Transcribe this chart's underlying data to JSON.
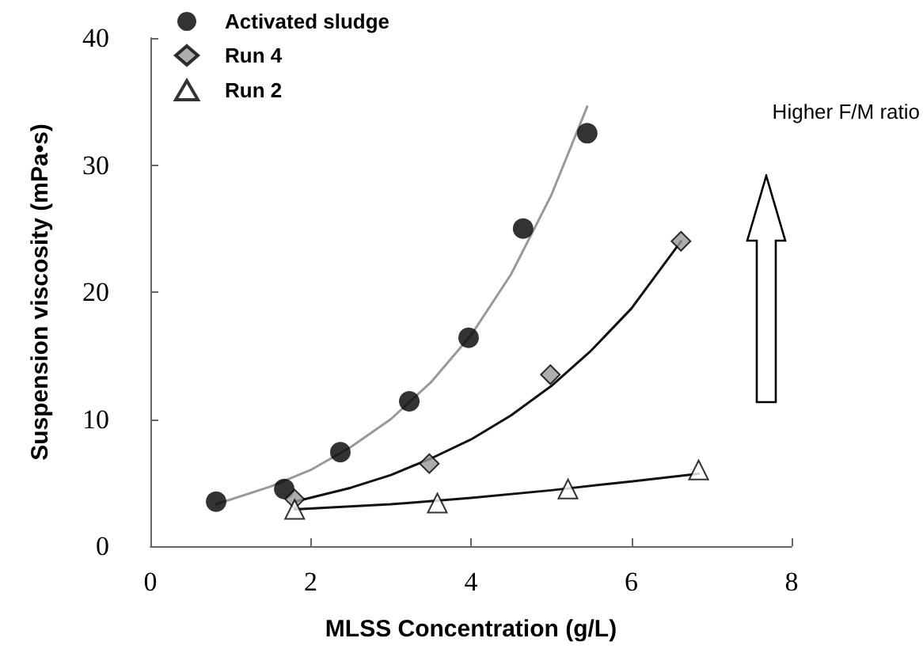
{
  "chart_data": {
    "type": "scatter",
    "xlabel": "MLSS Concentration (g/L)",
    "ylabel": "Suspension viscosity (mPa•s)",
    "xlim": [
      0,
      8
    ],
    "xticks": [
      0,
      2,
      4,
      6,
      8
    ],
    "ylim": [
      0,
      40
    ],
    "yticks": [
      0,
      10,
      20,
      30,
      40
    ],
    "grid": false,
    "legend": "top left",
    "annotations": [
      "Higher F/M ratio"
    ],
    "series": [
      {
        "type": "line",
        "color": "#999999",
        "marker": "none",
        "x": [
          0.82,
          1.5,
          2,
          2.5,
          3,
          3.5,
          4,
          4.5,
          5,
          5.45
        ],
        "values": [
          3.3,
          4.7,
          6.0,
          7.8,
          10.0,
          12.9,
          16.6,
          21.4,
          27.6,
          34.6
        ]
      },
      {
        "type": "line",
        "color": "#111111",
        "marker": "none",
        "x": [
          1.8,
          2.5,
          3,
          3.5,
          4,
          4.5,
          5,
          5.5,
          6,
          6.62
        ],
        "values": [
          3.5,
          4.6,
          5.6,
          6.9,
          8.4,
          10.3,
          12.6,
          15.4,
          18.7,
          24.0
        ]
      },
      {
        "type": "line",
        "color": "#111111",
        "marker": "none",
        "x": [
          1.8,
          3,
          4,
          5,
          6,
          6.84
        ],
        "values": [
          2.9,
          3.3,
          3.8,
          4.4,
          5.1,
          5.7
        ]
      },
      {
        "name": "Activated sludge",
        "color": "#000000",
        "marker": "circle",
        "x": [
          0.82,
          1.67,
          2.37,
          3.23,
          3.97,
          4.65,
          5.45
        ],
        "values": [
          3.5,
          4.5,
          7.4,
          11.4,
          16.4,
          25.0,
          32.5
        ]
      },
      {
        "name": "Run 4",
        "color": "#999999",
        "marker": "diamond",
        "x": [
          1.8,
          3.48,
          4.99,
          6.62
        ],
        "values": [
          3.7,
          6.5,
          13.5,
          24.0
        ]
      },
      {
        "name": "Run 2",
        "color": "#ffffff",
        "marker": "triangle",
        "x": [
          1.8,
          3.58,
          5.21,
          6.84
        ],
        "values": [
          2.9,
          3.4,
          4.5,
          6.0
        ]
      }
    ]
  }
}
